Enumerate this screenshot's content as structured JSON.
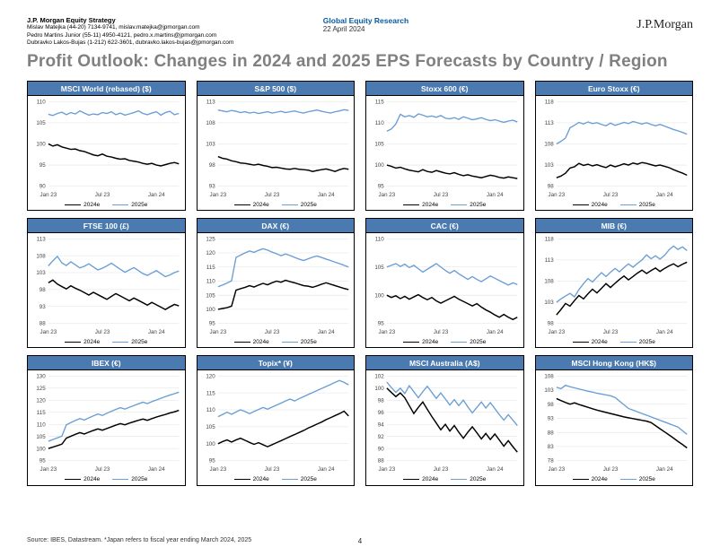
{
  "header": {
    "dept": "J.P. Morgan Equity Strategy",
    "contacts": [
      "Mislav Matejka (44-20) 7134-9741, mislav.matejka@jpmorgan.com",
      "Pedro Martins Junior (55-11) 4950-4121, pedro.x.martins@jpmorgan.com",
      "Dubravko Lakos-Bujas (1-212) 622-3601, dubravko.lakos-bujas@jpmorgan.com"
    ],
    "group": "Global Equity Research",
    "date": "22 April 2024",
    "logo": "J.P.Morgan"
  },
  "main_title": "Profit Outlook: Changes in 2024 and 2025 EPS Forecasts by Country / Region",
  "legend": {
    "s2024": "2024e",
    "s2025": "2025e"
  },
  "colors": {
    "panel_header_bg": "#4a7ab0",
    "panel_header_text": "#ffffff",
    "title_color": "#808080",
    "group_color": "#0a5aa0",
    "series2024": "#000000",
    "series2025": "#6a9ed4",
    "grid": "#e6e6e6",
    "bg": "#ffffff"
  },
  "x_ticks": [
    "Jan 23",
    "Jul 23",
    "Jan 24"
  ],
  "footer": {
    "source": "Source: IBES, Datastream. *Japan refers to fiscal year ending March 2024, 2025",
    "page": "4"
  },
  "panels": [
    {
      "title": "MSCI World (rebased) ($)",
      "ylim": [
        90,
        110
      ],
      "ystep": 5,
      "s24": [
        100,
        99.5,
        99.8,
        99.3,
        99,
        98.7,
        98.8,
        98.4,
        98.2,
        97.8,
        97.4,
        97.2,
        97.6,
        97.1,
        96.9,
        96.6,
        96.4,
        96.5,
        96.1,
        95.9,
        95.7,
        95.4,
        95.2,
        95.4,
        95,
        94.8,
        95.1,
        95.4,
        95.6,
        95.3
      ],
      "s25": [
        107,
        106.7,
        107.2,
        107.5,
        106.9,
        107.4,
        107.1,
        107.8,
        107.3,
        106.8,
        107.1,
        106.9,
        107.4,
        107.2,
        107.6,
        106.9,
        107.3,
        106.8,
        107.1,
        107.4,
        107.8,
        107.2,
        106.9,
        107.3,
        107.6,
        106.8,
        107.4,
        107.7,
        106.9,
        107.2
      ]
    },
    {
      "title": "S&P 500 ($)",
      "ylim": [
        93,
        113
      ],
      "ystep": 5,
      "s24": [
        100,
        99.6,
        99.4,
        99,
        98.8,
        98.5,
        98.4,
        98.2,
        98,
        98.2,
        97.9,
        97.7,
        97.4,
        97.5,
        97.3,
        97.1,
        97,
        97.2,
        97,
        96.9,
        96.8,
        96.5,
        96.7,
        96.9,
        97.1,
        96.8,
        96.5,
        96.9,
        97.2,
        97
      ],
      "s25": [
        111,
        110.8,
        110.6,
        110.9,
        110.7,
        110.4,
        110.6,
        110.3,
        110.5,
        110.2,
        110.4,
        110.6,
        110.3,
        110.5,
        110.7,
        110.4,
        110.6,
        110.8,
        110.5,
        110.3,
        110.6,
        110.8,
        111,
        110.7,
        110.5,
        110.3,
        110.6,
        110.8,
        111.1,
        110.9
      ]
    },
    {
      "title": "Stoxx 600 (€)",
      "ylim": [
        95,
        115
      ],
      "ystep": 5,
      "s24": [
        100,
        99.7,
        99.3,
        99.5,
        99.1,
        98.8,
        98.6,
        98.4,
        98.9,
        98.5,
        98.3,
        98.7,
        98.4,
        98.1,
        97.9,
        98.2,
        97.8,
        97.5,
        97.7,
        97.4,
        97.2,
        97,
        97.3,
        97.6,
        97.4,
        97.1,
        96.9,
        97.2,
        97,
        96.8
      ],
      "s25": [
        108,
        108.5,
        109.7,
        112,
        111.4,
        111.7,
        111.3,
        112.1,
        111.8,
        111.4,
        111.6,
        111.3,
        111.7,
        111.1,
        110.9,
        111.2,
        110.8,
        111.4,
        111.1,
        110.7,
        110.9,
        111.2,
        110.8,
        110.5,
        110.7,
        110.4,
        110.1,
        110.4,
        110.6,
        110.2
      ]
    },
    {
      "title": "Euro Stoxx (€)",
      "ylim": [
        98,
        118
      ],
      "ystep": 5,
      "s24": [
        100,
        100.4,
        101.1,
        102.3,
        102.6,
        103.4,
        102.9,
        103.2,
        102.8,
        103.1,
        102.7,
        102.4,
        103,
        102.6,
        102.9,
        103.3,
        103,
        103.5,
        103.2,
        103.6,
        103.4,
        103.1,
        102.8,
        103,
        102.7,
        102.4,
        101.9,
        101.5,
        101.1,
        100.6
      ],
      "s25": [
        108,
        108.6,
        109.4,
        111.8,
        112.4,
        113.1,
        112.7,
        113.2,
        112.8,
        113,
        112.6,
        112.3,
        112.9,
        112.4,
        112.7,
        113.1,
        112.8,
        113.3,
        113,
        112.7,
        113,
        112.6,
        112.3,
        112.6,
        112.2,
        111.8,
        111.4,
        111.1,
        110.7,
        110.3
      ]
    },
    {
      "title": "FTSE 100 (£)",
      "ylim": [
        88,
        113
      ],
      "ystep": 5,
      "s24": [
        100,
        100.8,
        99.6,
        98.9,
        98.2,
        99.1,
        98.4,
        97.8,
        97.1,
        96.4,
        97.2,
        96.5,
        95.8,
        95.1,
        96,
        96.8,
        96.1,
        95.4,
        94.7,
        95.5,
        94.8,
        94.1,
        93.4,
        94.2,
        93.5,
        92.8,
        92.1,
        92.9,
        93.6,
        93.2
      ],
      "s25": [
        105,
        106.5,
        107.8,
        105.9,
        105.1,
        106.2,
        105.3,
        104.4,
        104.9,
        105.6,
        104.7,
        103.8,
        104.3,
        105,
        105.8,
        104.9,
        104,
        103.1,
        103.8,
        104.5,
        103.6,
        102.7,
        102.2,
        102.9,
        103.6,
        102.7,
        101.8,
        102.3,
        103,
        103.5
      ]
    },
    {
      "title": "DAX (€)",
      "ylim": [
        95,
        125
      ],
      "ystep": 5,
      "s24": [
        100,
        100.3,
        100.6,
        101.1,
        106.8,
        107.3,
        107.8,
        108.4,
        107.9,
        108.6,
        109.2,
        108.7,
        109.4,
        110,
        109.6,
        110.3,
        109.8,
        109.4,
        108.9,
        108.4,
        108.2,
        107.8,
        108.3,
        108.9,
        109.4,
        108.9,
        108.4,
        107.9,
        107.4,
        107
      ],
      "s25": [
        108,
        108.6,
        109.3,
        110.1,
        118.4,
        119.2,
        120,
        120.7,
        120.2,
        120.9,
        121.5,
        121,
        120.3,
        119.7,
        119,
        119.6,
        119.1,
        118.4,
        117.8,
        117.3,
        117.9,
        118.5,
        118.9,
        118.4,
        117.8,
        117.3,
        116.7,
        116.2,
        115.6,
        115
      ]
    },
    {
      "title": "CAC (€)",
      "ylim": [
        95,
        110
      ],
      "ystep": 5,
      "s24": [
        100,
        99.6,
        99.9,
        99.4,
        99.8,
        99.3,
        99.7,
        100.1,
        99.6,
        99.2,
        99.6,
        99,
        98.6,
        99,
        99.4,
        99.8,
        99.3,
        98.9,
        98.5,
        98.1,
        98.5,
        97.9,
        97.4,
        97,
        96.5,
        96.1,
        96.6,
        96.1,
        95.7,
        96.1
      ],
      "s25": [
        105,
        105.3,
        105.6,
        105.1,
        105.5,
        104.9,
        105.3,
        104.7,
        104.1,
        104.6,
        105.1,
        105.6,
        105,
        104.4,
        103.9,
        104.4,
        103.8,
        103.3,
        102.8,
        103.3,
        102.8,
        102.4,
        102.9,
        103.4,
        103,
        102.6,
        102.2,
        101.8,
        102.2,
        101.9
      ]
    },
    {
      "title": "MIB (€)",
      "ylim": [
        98,
        118
      ],
      "ystep": 5,
      "s24": [
        100,
        101.3,
        102.7,
        102.1,
        103.4,
        104.6,
        103.8,
        105,
        106.1,
        105.2,
        106.3,
        107.4,
        106.5,
        107.5,
        108.4,
        109.2,
        108.3,
        109.1,
        109.9,
        110.6,
        109.8,
        110.5,
        111.1,
        110.3,
        111,
        111.6,
        112.1,
        111.4,
        112,
        112.5
      ],
      "s25": [
        103,
        103.8,
        104.5,
        105.1,
        104.3,
        106,
        107.4,
        108.6,
        107.8,
        108.9,
        110,
        109.1,
        110.1,
        111,
        110.2,
        111.2,
        112.1,
        111.3,
        112.2,
        113,
        114.2,
        113.3,
        114,
        113.2,
        114.1,
        115.4,
        116.3,
        115.5,
        116.1,
        115.2
      ]
    },
    {
      "title": "IBEX (€)",
      "ylim": [
        95,
        130
      ],
      "ystep": 5,
      "s24": [
        100,
        100.6,
        101.2,
        101.8,
        104.3,
        105.1,
        105.9,
        106.6,
        106,
        106.8,
        107.5,
        108.1,
        107.6,
        108.3,
        109,
        109.7,
        110.3,
        109.8,
        110.5,
        111.1,
        111.7,
        112.2,
        111.7,
        112.4,
        113,
        113.6,
        114.1,
        114.7,
        115.2,
        115.8
      ],
      "s25": [
        103,
        103.7,
        104.4,
        105.1,
        109.8,
        110.7,
        111.6,
        112.4,
        111.8,
        112.7,
        113.5,
        114.3,
        113.7,
        114.6,
        115.4,
        116.2,
        116.9,
        116.3,
        117.1,
        117.8,
        118.5,
        119.2,
        118.6,
        119.4,
        120.1,
        120.8,
        121.5,
        122.1,
        122.7,
        123.3
      ]
    },
    {
      "title": "Topix* (¥)",
      "ylim": [
        95,
        120
      ],
      "ystep": 5,
      "s24": [
        100,
        100.6,
        101.1,
        100.5,
        101.1,
        101.6,
        101,
        100.4,
        99.8,
        100.3,
        99.7,
        99.1,
        99.7,
        100.3,
        100.9,
        101.5,
        102.1,
        102.7,
        103.3,
        103.9,
        104.6,
        105.2,
        105.8,
        106.4,
        107.1,
        107.7,
        108.3,
        108.9,
        109.6,
        108.2
      ],
      "s25": [
        108,
        108.6,
        109.3,
        108.7,
        109.4,
        110,
        109.5,
        108.9,
        109.5,
        110.1,
        110.7,
        110.2,
        110.8,
        111.4,
        112,
        112.6,
        113.2,
        112.6,
        113.3,
        113.9,
        114.5,
        115.1,
        115.7,
        116.3,
        116.9,
        117.5,
        118.1,
        118.7,
        118.1,
        117.4
      ]
    },
    {
      "title": "MSCI Australia (A$)",
      "ylim": [
        88,
        102
      ],
      "ystep": 2,
      "s24": [
        100,
        99.3,
        98.6,
        99.2,
        98.4,
        97.1,
        95.8,
        96.8,
        97.7,
        96.5,
        95.3,
        94.2,
        93.1,
        94,
        92.9,
        93.8,
        92.7,
        91.7,
        92.7,
        93.6,
        92.6,
        91.6,
        92.5,
        91.5,
        92.4,
        91.4,
        90.4,
        91.3,
        90.3,
        89.4
      ],
      "s25": [
        101,
        100.1,
        99.3,
        100,
        99.1,
        100.4,
        99.4,
        98.4,
        99.4,
        100.3,
        99.3,
        98.3,
        99.2,
        98.2,
        97.2,
        98.1,
        97.1,
        98,
        96.9,
        95.9,
        96.8,
        97.7,
        96.7,
        97.6,
        96.6,
        95.6,
        94.7,
        95.6,
        94.7,
        93.8
      ]
    },
    {
      "title": "MSCI Hong Kong (HK$)",
      "ylim": [
        78,
        108
      ],
      "ystep": 5,
      "s24": [
        100,
        99.3,
        98.6,
        98,
        98.5,
        97.9,
        97.4,
        96.9,
        96.4,
        95.9,
        95.5,
        95.1,
        94.7,
        94.3,
        93.9,
        93.5,
        93.2,
        92.9,
        92.6,
        92.3,
        92,
        91.5,
        90.4,
        89.3,
        88.2,
        87.1,
        86,
        84.8,
        83.7,
        82.5
      ],
      "s25": [
        104,
        103.5,
        104.7,
        104.2,
        103.8,
        103.4,
        103,
        102.6,
        102.3,
        101.9,
        101.6,
        101.3,
        101,
        100.4,
        99.1,
        97.8,
        96.5,
        95.9,
        95.3,
        94.7,
        94.1,
        93.5,
        92.9,
        92.3,
        91.7,
        91.1,
        90.5,
        89.9,
        88.6,
        87.3
      ]
    }
  ]
}
